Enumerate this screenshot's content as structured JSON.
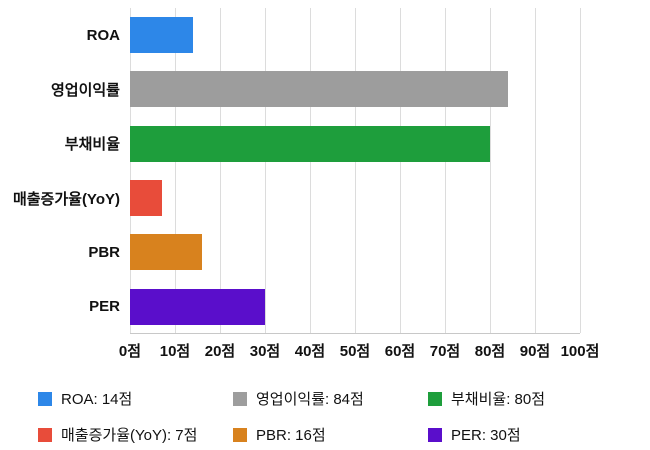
{
  "chart_data": {
    "type": "bar",
    "orientation": "horizontal",
    "categories": [
      "ROA",
      "영업이익률",
      "부채비율",
      "매출증가율(YoY)",
      "PBR",
      "PER"
    ],
    "values": [
      14,
      84,
      80,
      7,
      16,
      30
    ],
    "colors": [
      "#2D87E8",
      "#9D9D9D",
      "#1E9E3C",
      "#E84C3A",
      "#D8821E",
      "#5A0ECB"
    ],
    "unit": "점",
    "title": "",
    "xlabel": "",
    "ylabel": "",
    "xlim": [
      0,
      100
    ],
    "x_ticks": [
      0,
      10,
      20,
      30,
      40,
      50,
      60,
      70,
      80,
      90,
      100
    ],
    "x_tick_labels": [
      "0점",
      "10점",
      "20점",
      "30점",
      "40점",
      "50점",
      "60점",
      "70점",
      "80점",
      "90점",
      "100점"
    ],
    "grid": true,
    "legend_position": "bottom",
    "legend": [
      {
        "label": "ROA: 14점",
        "color": "#2D87E8"
      },
      {
        "label": "영업이익률: 84점",
        "color": "#9D9D9D"
      },
      {
        "label": "부채비율: 80점",
        "color": "#1E9E3C"
      },
      {
        "label": "매출증가율(YoY): 7점",
        "color": "#E84C3A"
      },
      {
        "label": "PBR: 16점",
        "color": "#D8821E"
      },
      {
        "label": "PER: 30점",
        "color": "#5A0ECB"
      }
    ]
  }
}
